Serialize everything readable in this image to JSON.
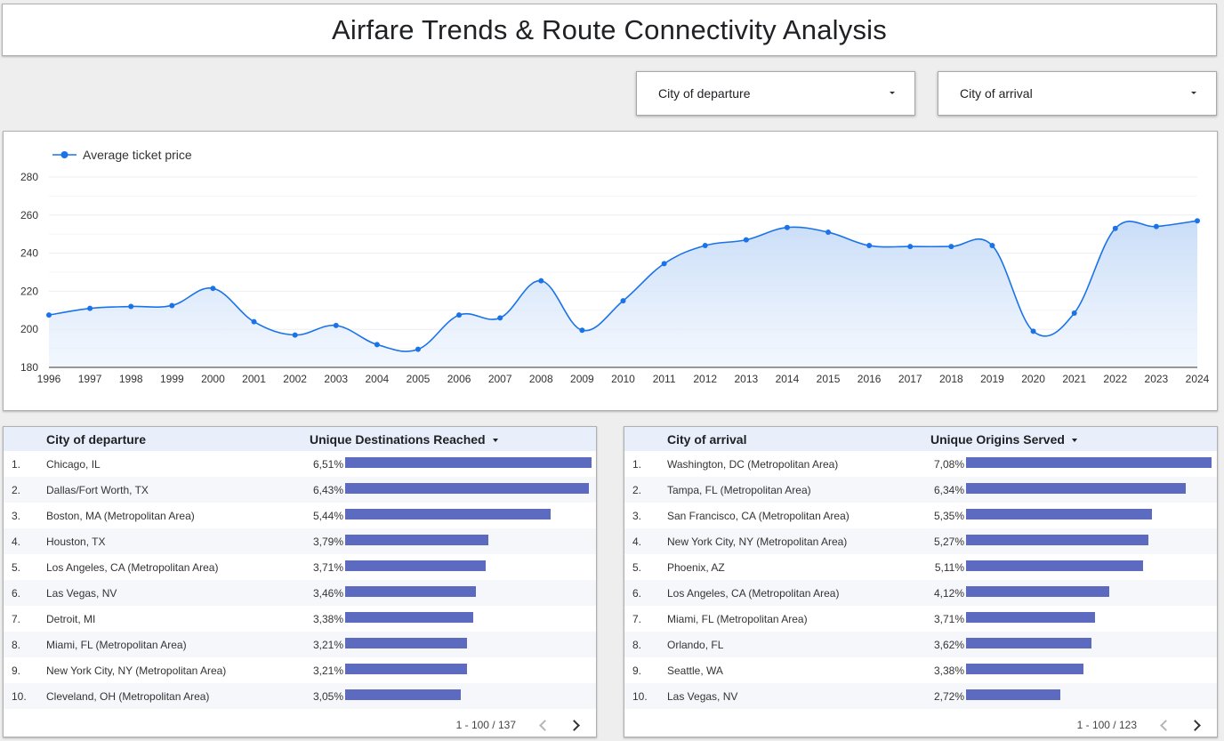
{
  "page": {
    "title": "Airfare Trends & Route Connectivity Analysis"
  },
  "filters": {
    "departure": {
      "label": "City of departure",
      "icon": "dropdown-caret-icon"
    },
    "arrival": {
      "label": "City of arrival",
      "icon": "dropdown-caret-icon"
    }
  },
  "chart_data": {
    "type": "line",
    "x": [
      "1996",
      "1997",
      "1998",
      "1999",
      "2000",
      "2001",
      "2002",
      "2003",
      "2004",
      "2005",
      "2006",
      "2007",
      "2008",
      "2009",
      "2010",
      "2011",
      "2012",
      "2013",
      "2014",
      "2015",
      "2016",
      "2017",
      "2018",
      "2019",
      "2020",
      "2021",
      "2022",
      "2023",
      "2024"
    ],
    "series": [
      {
        "name": "Average ticket price",
        "values": [
          207.5,
          211,
          212,
          212.5,
          221.5,
          204,
          197,
          202,
          192,
          189.5,
          207.5,
          206,
          225.5,
          199.5,
          215,
          234.5,
          244,
          247,
          253.5,
          251,
          244,
          243.5,
          243.5,
          244,
          199,
          208.5,
          253,
          254,
          257
        ],
        "color": "#1a73e8"
      }
    ],
    "ylim": [
      180,
      280
    ],
    "yticks": [
      180,
      200,
      220,
      240,
      260,
      280
    ],
    "grid": true,
    "legend": "top-left",
    "fill": "area-gradient"
  },
  "departure_table": {
    "col_city": "City of departure",
    "col_metric": "Unique Destinations Reached",
    "rows": [
      {
        "rank": "1.",
        "city": "Chicago, IL",
        "pct_label": "6,51%",
        "value": 6.51
      },
      {
        "rank": "2.",
        "city": "Dallas/Fort Worth, TX",
        "pct_label": "6,43%",
        "value": 6.43
      },
      {
        "rank": "3.",
        "city": "Boston, MA (Metropolitan Area)",
        "pct_label": "5,44%",
        "value": 5.44
      },
      {
        "rank": "4.",
        "city": "Houston, TX",
        "pct_label": "3,79%",
        "value": 3.79
      },
      {
        "rank": "5.",
        "city": "Los Angeles, CA (Metropolitan Area)",
        "pct_label": "3,71%",
        "value": 3.71
      },
      {
        "rank": "6.",
        "city": "Las Vegas, NV",
        "pct_label": "3,46%",
        "value": 3.46
      },
      {
        "rank": "7.",
        "city": "Detroit, MI",
        "pct_label": "3,38%",
        "value": 3.38
      },
      {
        "rank": "8.",
        "city": "Miami, FL (Metropolitan Area)",
        "pct_label": "3,21%",
        "value": 3.21
      },
      {
        "rank": "9.",
        "city": "New York City, NY (Metropolitan Area)",
        "pct_label": "3,21%",
        "value": 3.21
      },
      {
        "rank": "10.",
        "city": "Cleveland, OH (Metropolitan Area)",
        "pct_label": "3,05%",
        "value": 3.05
      }
    ],
    "pager": "1 - 100 / 137"
  },
  "arrival_table": {
    "col_city": "City of arrival",
    "col_metric": "Unique Origins Served",
    "rows": [
      {
        "rank": "1.",
        "city": "Washington, DC (Metropolitan Area)",
        "pct_label": "7,08%",
        "value": 7.08
      },
      {
        "rank": "2.",
        "city": "Tampa, FL (Metropolitan Area)",
        "pct_label": "6,34%",
        "value": 6.34
      },
      {
        "rank": "3.",
        "city": "San Francisco, CA (Metropolitan Area)",
        "pct_label": "5,35%",
        "value": 5.35
      },
      {
        "rank": "4.",
        "city": "New York City, NY (Metropolitan Area)",
        "pct_label": "5,27%",
        "value": 5.27
      },
      {
        "rank": "5.",
        "city": "Phoenix, AZ",
        "pct_label": "5,11%",
        "value": 5.11
      },
      {
        "rank": "6.",
        "city": "Los Angeles, CA (Metropolitan Area)",
        "pct_label": "4,12%",
        "value": 4.12
      },
      {
        "rank": "7.",
        "city": "Miami, FL (Metropolitan Area)",
        "pct_label": "3,71%",
        "value": 3.71
      },
      {
        "rank": "8.",
        "city": "Orlando, FL",
        "pct_label": "3,62%",
        "value": 3.62
      },
      {
        "rank": "9.",
        "city": "Seattle, WA",
        "pct_label": "3,38%",
        "value": 3.38
      },
      {
        "rank": "10.",
        "city": "Las Vegas, NV",
        "pct_label": "2,72%",
        "value": 2.72
      }
    ],
    "pager": "1 - 100 / 123"
  },
  "colors": {
    "line": "#1a73e8",
    "bar": "#5c6bc0",
    "header_bg": "#e8eefa"
  },
  "icons": {
    "sort": "sort-desc-icon",
    "prev": "chevron-left-icon",
    "next": "chevron-right-icon"
  }
}
